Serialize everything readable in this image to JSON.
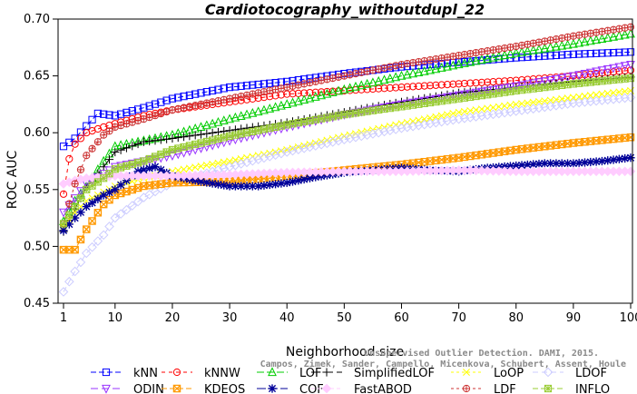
{
  "chart_data": {
    "type": "line",
    "title": "Cardiotocography_withoutdupl_22",
    "xlabel": "Neighborhood size",
    "ylabel": "ROC AUC",
    "xlim": [
      1,
      100
    ],
    "ylim": [
      0.45,
      0.7
    ],
    "xticks": [
      1,
      10,
      20,
      30,
      40,
      50,
      60,
      70,
      80,
      90,
      100
    ],
    "yticks": [
      0.45,
      0.5,
      0.55,
      0.6,
      0.65,
      0.7
    ],
    "ytick_labels": [
      "0.45",
      "0.50",
      "0.55",
      "0.60",
      "0.65",
      "0.70"
    ],
    "grid": false,
    "legend_position": "bottom",
    "series": [
      {
        "name": "kNN",
        "color": "#0000ff",
        "marker": "square",
        "dash": "6,3",
        "points": [
          [
            1,
            0.588
          ],
          [
            3,
            0.595
          ],
          [
            5,
            0.606
          ],
          [
            7,
            0.617
          ],
          [
            10,
            0.615
          ],
          [
            15,
            0.622
          ],
          [
            20,
            0.63
          ],
          [
            30,
            0.64
          ],
          [
            40,
            0.645
          ],
          [
            50,
            0.652
          ],
          [
            60,
            0.658
          ],
          [
            70,
            0.662
          ],
          [
            80,
            0.666
          ],
          [
            90,
            0.669
          ],
          [
            100,
            0.671
          ]
        ]
      },
      {
        "name": "kNNW",
        "color": "#ff0000",
        "marker": "circle",
        "dash": "4,4",
        "points": [
          [
            1,
            0.546
          ],
          [
            2,
            0.577
          ],
          [
            3,
            0.59
          ],
          [
            5,
            0.6
          ],
          [
            8,
            0.605
          ],
          [
            10,
            0.608
          ],
          [
            15,
            0.615
          ],
          [
            20,
            0.62
          ],
          [
            30,
            0.627
          ],
          [
            40,
            0.634
          ],
          [
            50,
            0.637
          ],
          [
            60,
            0.64
          ],
          [
            70,
            0.643
          ],
          [
            80,
            0.646
          ],
          [
            90,
            0.65
          ],
          [
            100,
            0.655
          ]
        ]
      },
      {
        "name": "LOF",
        "color": "#00cc00",
        "marker": "triangle-up",
        "dash": "8,3",
        "points": [
          [
            1,
            0.522
          ],
          [
            3,
            0.54
          ],
          [
            5,
            0.553
          ],
          [
            8,
            0.575
          ],
          [
            10,
            0.588
          ],
          [
            15,
            0.593
          ],
          [
            20,
            0.598
          ],
          [
            30,
            0.612
          ],
          [
            40,
            0.625
          ],
          [
            50,
            0.638
          ],
          [
            60,
            0.65
          ],
          [
            70,
            0.66
          ],
          [
            80,
            0.67
          ],
          [
            90,
            0.678
          ],
          [
            100,
            0.687
          ]
        ]
      },
      {
        "name": "SimplifiedLOF",
        "color": "#000000",
        "marker": "plus",
        "dash": "10,4",
        "points": [
          [
            1,
            0.513
          ],
          [
            3,
            0.533
          ],
          [
            5,
            0.552
          ],
          [
            8,
            0.57
          ],
          [
            10,
            0.583
          ],
          [
            15,
            0.592
          ],
          [
            20,
            0.595
          ],
          [
            30,
            0.602
          ],
          [
            40,
            0.609
          ],
          [
            50,
            0.618
          ],
          [
            60,
            0.627
          ],
          [
            70,
            0.635
          ],
          [
            80,
            0.64
          ],
          [
            90,
            0.645
          ],
          [
            100,
            0.649
          ]
        ]
      },
      {
        "name": "LoOP",
        "color": "#ffff00",
        "marker": "x",
        "dash": "3,3",
        "points": [
          [
            1,
            0.517
          ],
          [
            3,
            0.53
          ],
          [
            5,
            0.54
          ],
          [
            10,
            0.553
          ],
          [
            15,
            0.56
          ],
          [
            20,
            0.566
          ],
          [
            30,
            0.575
          ],
          [
            40,
            0.585
          ],
          [
            50,
            0.597
          ],
          [
            60,
            0.608
          ],
          [
            70,
            0.618
          ],
          [
            80,
            0.625
          ],
          [
            90,
            0.631
          ],
          [
            100,
            0.637
          ]
        ]
      },
      {
        "name": "LDOF",
        "color": "#ccccff",
        "marker": "diamond",
        "dash": "6,4",
        "points": [
          [
            1,
            0.46
          ],
          [
            3,
            0.478
          ],
          [
            5,
            0.494
          ],
          [
            8,
            0.51
          ],
          [
            10,
            0.525
          ],
          [
            15,
            0.543
          ],
          [
            20,
            0.556
          ],
          [
            30,
            0.57
          ],
          [
            40,
            0.583
          ],
          [
            50,
            0.594
          ],
          [
            60,
            0.604
          ],
          [
            70,
            0.612
          ],
          [
            80,
            0.619
          ],
          [
            90,
            0.626
          ],
          [
            100,
            0.631
          ]
        ]
      },
      {
        "name": "ODIN",
        "color": "#9933ff",
        "marker": "triangle-down",
        "dash": "8,4",
        "points": [
          [
            1,
            0.53
          ],
          [
            5,
            0.555
          ],
          [
            10,
            0.57
          ],
          [
            15,
            0.575
          ],
          [
            20,
            0.58
          ],
          [
            30,
            0.593
          ],
          [
            40,
            0.605
          ],
          [
            50,
            0.616
          ],
          [
            60,
            0.625
          ],
          [
            70,
            0.633
          ],
          [
            80,
            0.641
          ],
          [
            90,
            0.65
          ],
          [
            100,
            0.66
          ]
        ]
      },
      {
        "name": "KDEOS",
        "color": "#ff9900",
        "marker": "square-x",
        "dash": "6,3",
        "points": [
          [
            1,
            0.497
          ],
          [
            3,
            0.497
          ],
          [
            5,
            0.515
          ],
          [
            8,
            0.537
          ],
          [
            10,
            0.545
          ],
          [
            15,
            0.553
          ],
          [
            20,
            0.556
          ],
          [
            30,
            0.557
          ],
          [
            40,
            0.562
          ],
          [
            50,
            0.567
          ],
          [
            60,
            0.572
          ],
          [
            70,
            0.578
          ],
          [
            80,
            0.585
          ],
          [
            90,
            0.591
          ],
          [
            100,
            0.596
          ]
        ]
      },
      {
        "name": "COF",
        "color": "#000099",
        "marker": "asterisk",
        "dash": "10,3",
        "points": [
          [
            1,
            0.514
          ],
          [
            3,
            0.525
          ],
          [
            5,
            0.535
          ],
          [
            8,
            0.545
          ],
          [
            10,
            0.55
          ],
          [
            14,
            0.566
          ],
          [
            17,
            0.57
          ],
          [
            20,
            0.562
          ],
          [
            25,
            0.557
          ],
          [
            30,
            0.553
          ],
          [
            35,
            0.553
          ],
          [
            40,
            0.556
          ],
          [
            45,
            0.561
          ],
          [
            50,
            0.565
          ],
          [
            55,
            0.567
          ],
          [
            60,
            0.569
          ],
          [
            65,
            0.567
          ],
          [
            70,
            0.566
          ],
          [
            75,
            0.569
          ],
          [
            80,
            0.571
          ],
          [
            85,
            0.573
          ],
          [
            90,
            0.573
          ],
          [
            95,
            0.575
          ],
          [
            100,
            0.578
          ]
        ]
      },
      {
        "name": "FastABOD",
        "color": "#ffccff",
        "marker": "diamond-filled",
        "dash": "4,3",
        "points": [
          [
            1,
            0.555
          ],
          [
            3,
            0.558
          ],
          [
            5,
            0.56
          ],
          [
            10,
            0.562
          ],
          [
            20,
            0.562
          ],
          [
            30,
            0.563
          ],
          [
            40,
            0.565
          ],
          [
            50,
            0.566
          ],
          [
            60,
            0.566
          ],
          [
            70,
            0.567
          ],
          [
            80,
            0.566
          ],
          [
            90,
            0.566
          ],
          [
            100,
            0.566
          ]
        ]
      },
      {
        "name": "LDF",
        "color": "#cc3333",
        "marker": "circle-plus",
        "dash": "3,3",
        "points": [
          [
            1,
            0.52
          ],
          [
            3,
            0.555
          ],
          [
            5,
            0.58
          ],
          [
            8,
            0.598
          ],
          [
            10,
            0.605
          ],
          [
            15,
            0.612
          ],
          [
            20,
            0.62
          ],
          [
            30,
            0.63
          ],
          [
            40,
            0.64
          ],
          [
            50,
            0.65
          ],
          [
            60,
            0.66
          ],
          [
            70,
            0.668
          ],
          [
            80,
            0.676
          ],
          [
            90,
            0.685
          ],
          [
            100,
            0.693
          ]
        ]
      },
      {
        "name": "INFLO",
        "color": "#99cc33",
        "marker": "square-cross",
        "dash": "6,3",
        "points": [
          [
            1,
            0.52
          ],
          [
            3,
            0.535
          ],
          [
            5,
            0.55
          ],
          [
            8,
            0.56
          ],
          [
            10,
            0.568
          ],
          [
            15,
            0.575
          ],
          [
            20,
            0.585
          ],
          [
            30,
            0.597
          ],
          [
            40,
            0.607
          ],
          [
            50,
            0.616
          ],
          [
            60,
            0.623
          ],
          [
            70,
            0.63
          ],
          [
            80,
            0.637
          ],
          [
            90,
            0.643
          ],
          [
            100,
            0.648
          ]
        ]
      }
    ],
    "legend_rows": [
      [
        "kNN",
        "kNNW",
        "LOF",
        "SimplifiedLOF",
        "LoOP",
        "LDOF"
      ],
      [
        "ODIN",
        "KDEOS",
        "COF",
        "FastABOD",
        "LDF",
        "INFLO"
      ]
    ],
    "watermark": "Campos, Zimek, Sander, Campello, Micenkova, Schubert, Assent, Houle",
    "watermark_top": "Unsupervised Outlier Detection. DAMI, 2015."
  }
}
